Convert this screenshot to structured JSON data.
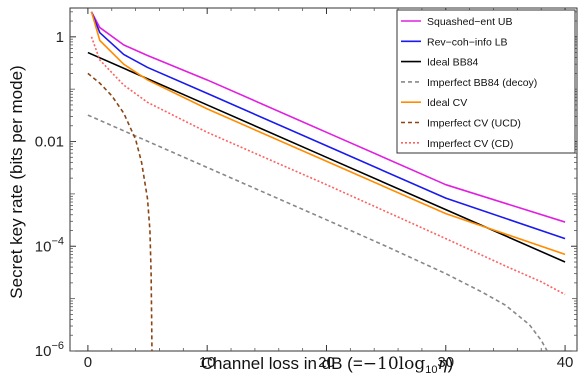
{
  "chart_data": {
    "type": "line",
    "xlabel_prefix": "Channel loss in dB (=",
    "xlabel_math": "−10log",
    "xlabel_sub": "10",
    "xlabel_var": "η",
    "xlabel_suffix": ")",
    "ylabel": "Secret key rate (bits per mode)",
    "xlim": [
      -1.5,
      41
    ],
    "ylim_log10": [
      -6,
      0.55
    ],
    "yscale": "log",
    "x_ticks": [
      0,
      10,
      20,
      30,
      40
    ],
    "x_tick_labels": [
      "0",
      "10",
      "20",
      "30",
      "40"
    ],
    "y_ticks": [
      {
        "value": 1,
        "base": "1",
        "exp": ""
      },
      {
        "value": 0.01,
        "base": "0.01",
        "exp": ""
      },
      {
        "value": 0.0001,
        "base": "10",
        "exp": "−4"
      },
      {
        "value": 1e-06,
        "base": "10",
        "exp": "−6"
      }
    ],
    "legend_position": "top-right",
    "series": [
      {
        "name": "Squashed−ent UB",
        "color": "#e020e0",
        "dash": "solid",
        "points": [
          [
            0.3,
            3.0
          ],
          [
            1,
            1.5
          ],
          [
            3,
            0.7
          ],
          [
            5,
            0.44
          ],
          [
            10,
            0.15
          ],
          [
            20,
            0.015
          ],
          [
            30,
            0.0015
          ],
          [
            40,
            0.00029
          ]
        ]
      },
      {
        "name": "Rev−coh−info LB",
        "color": "#1a1aee",
        "dash": "solid",
        "points": [
          [
            0.3,
            3.0
          ],
          [
            1,
            1.2
          ],
          [
            3,
            0.46
          ],
          [
            5,
            0.26
          ],
          [
            10,
            0.083
          ],
          [
            20,
            0.0083
          ],
          [
            30,
            0.00083
          ],
          [
            40,
            0.00014
          ]
        ]
      },
      {
        "name": "Ideal BB84",
        "color": "#000000",
        "dash": "solid",
        "points": [
          [
            0,
            0.5
          ],
          [
            10,
            0.05
          ],
          [
            20,
            0.005
          ],
          [
            30,
            0.0005
          ],
          [
            40,
            5e-05
          ]
        ]
      },
      {
        "name": "Imperfect BB84 (decoy)",
        "color": "#888888",
        "dash": "dashed",
        "points": [
          [
            0,
            0.032
          ],
          [
            10,
            0.0032
          ],
          [
            20,
            0.00032
          ],
          [
            25,
            0.0001
          ],
          [
            30,
            3e-05
          ],
          [
            33,
            1.35e-05
          ],
          [
            35,
            7.5e-06
          ],
          [
            37,
            3.2e-06
          ],
          [
            38,
            1.6e-06
          ],
          [
            38.5,
            9.5e-07
          ]
        ]
      },
      {
        "name": "Ideal CV",
        "color": "#ff8c00",
        "dash": "solid",
        "points": [
          [
            0.3,
            3.0
          ],
          [
            1,
            0.85
          ],
          [
            3,
            0.3
          ],
          [
            5,
            0.15
          ],
          [
            10,
            0.042
          ],
          [
            20,
            0.0042
          ],
          [
            30,
            0.00042
          ],
          [
            40,
            7e-05
          ]
        ]
      },
      {
        "name": "Imperfect CV (UCD)",
        "color": "#8b4513",
        "dash": "dashed",
        "points": [
          [
            0,
            0.2
          ],
          [
            1,
            0.13
          ],
          [
            2,
            0.075
          ],
          [
            3,
            0.035
          ],
          [
            4,
            0.011
          ],
          [
            4.5,
            0.004
          ],
          [
            5,
            0.0008
          ],
          [
            5.2,
            0.0002
          ],
          [
            5.3,
            3e-05
          ],
          [
            5.35,
            3e-06
          ],
          [
            5.37,
            1e-06
          ]
        ]
      },
      {
        "name": "Imperfect CV (CD)",
        "color": "#ff6060",
        "dash": "dotted",
        "points": [
          [
            0.3,
            1.0
          ],
          [
            1,
            0.36
          ],
          [
            3,
            0.12
          ],
          [
            5,
            0.056
          ],
          [
            10,
            0.015
          ],
          [
            20,
            0.0015
          ],
          [
            30,
            0.00014
          ],
          [
            35,
            4.2e-05
          ],
          [
            38,
            2.1e-05
          ],
          [
            40,
            1.2e-05
          ]
        ]
      }
    ]
  }
}
